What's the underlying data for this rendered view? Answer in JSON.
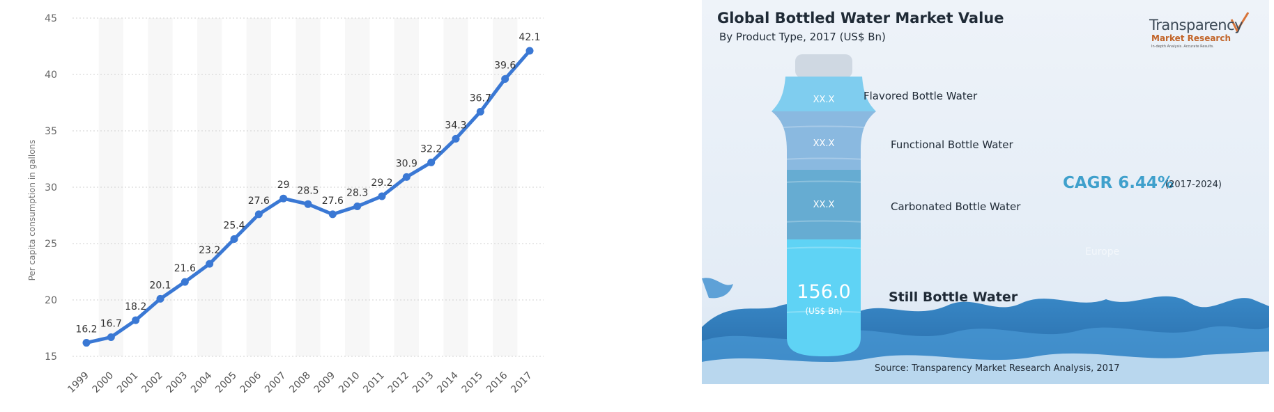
{
  "chart_data": [
    {
      "type": "line",
      "title": "",
      "xlabel": "",
      "ylabel": "Per capita consumption in gallons",
      "ylim": [
        15,
        45
      ],
      "yticks": [
        15,
        20,
        25,
        30,
        35,
        40,
        45
      ],
      "grid": "horizontal dotted, alternating vertical column shading",
      "x": [
        "1999",
        "2000",
        "2001",
        "2002",
        "2003",
        "2004",
        "2005",
        "2006",
        "2007",
        "2008",
        "2009",
        "2010",
        "2011",
        "2012",
        "2013",
        "2014",
        "2015",
        "2016",
        "2017"
      ],
      "series": [
        {
          "values": [
            16.2,
            16.7,
            18.2,
            20.1,
            21.6,
            23.2,
            25.4,
            27.6,
            29,
            28.5,
            27.6,
            28.3,
            29.2,
            30.9,
            32.2,
            34.3,
            36.7,
            39.6,
            42.1
          ],
          "labels": [
            "16.2",
            "16.7",
            "18.2",
            "20.1",
            "21.6",
            "23.2",
            "25.4",
            "27.6",
            "29",
            "28.5",
            "27.6",
            "28.3",
            "29.2",
            "30.9",
            "32.2",
            "34.3",
            "36.7",
            "39.6",
            "42.1"
          ],
          "color": "#3a78d4"
        }
      ]
    },
    {
      "type": "infographic",
      "title": "Global Bottled Water Market Value",
      "subtitle": "By Product Type, 2017 (US$ Bn)",
      "segments": [
        {
          "name": "Flavored Bottle Water",
          "value_text": "XX.X",
          "color": "#7fcdef"
        },
        {
          "name": "Functional Bottle Water",
          "value_text": "XX.X",
          "color": "#8ab9e0"
        },
        {
          "name": "Carbonated Bottle Water",
          "value_text": "XX.X",
          "color": "#66acd2"
        },
        {
          "name": "Still Bottle Water",
          "value_text": "156.0",
          "unit": "(US$ Bn)",
          "color": "#5fd3f5"
        }
      ],
      "cagr": "CAGR 6.44%",
      "cagr_period": "(2017-2024)",
      "faint_text": "Europe",
      "source": "Source: Transparency Market Research Analysis, 2017",
      "logo": {
        "name": "Transparency",
        "sub": "Market Research",
        "tagline": "In-depth Analysis. Accurate Results."
      }
    }
  ]
}
